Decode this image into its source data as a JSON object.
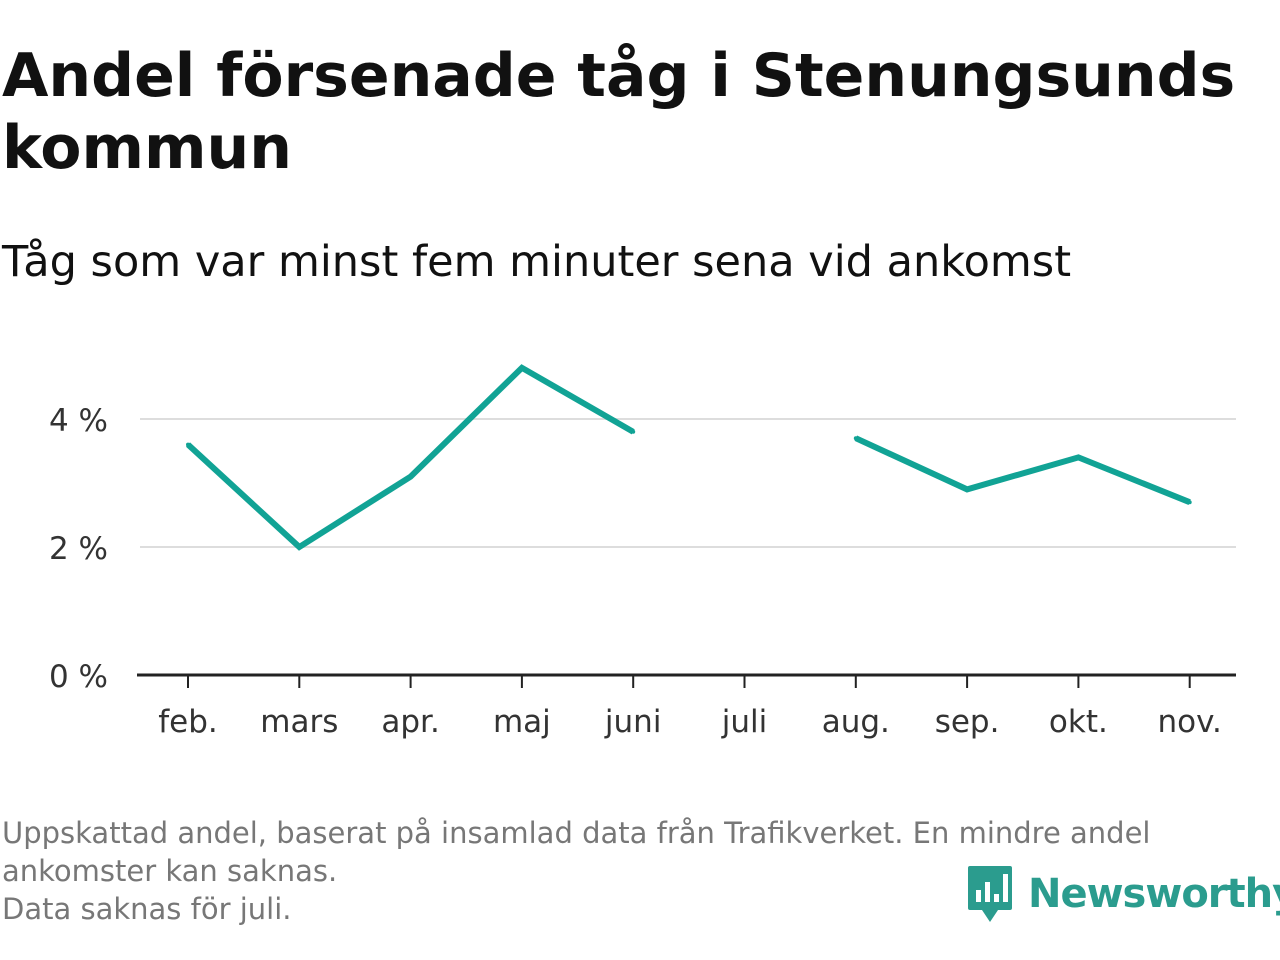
{
  "header": {
    "title": "Andel försenade tåg i Stenungsunds kommun",
    "subtitle": "Tåg som var minst fem minuter sena vid ankomst"
  },
  "chart_data": {
    "type": "line",
    "title": "Andel försenade tåg i Stenungsunds kommun",
    "subtitle": "Tåg som var minst fem minuter sena vid ankomst",
    "categories": [
      "feb.",
      "mars",
      "apr.",
      "maj",
      "juni",
      "juli",
      "aug.",
      "sep.",
      "okt.",
      "nov."
    ],
    "series": [
      {
        "values": [
          3.6,
          2.0,
          3.1,
          4.8,
          3.8,
          null,
          3.7,
          2.9,
          3.4,
          2.7
        ]
      }
    ],
    "ylim": [
      0,
      5
    ],
    "y_ticks": [
      0,
      2,
      4
    ],
    "y_tick_labels": [
      "0 %",
      "2 %",
      "4 %"
    ],
    "grid": true,
    "color": "#11a395"
  },
  "footer": {
    "note_lines": [
      "Uppskattad andel, baserat på insamlad data från Trafikverket. En mindre andel",
      "ankomster kan saknas.",
      "Data saknas för juli."
    ],
    "brand_name": "Newsworthy",
    "brand_icon": "newsworthy-logo-icon",
    "brand_color": "#2b9c8e"
  }
}
